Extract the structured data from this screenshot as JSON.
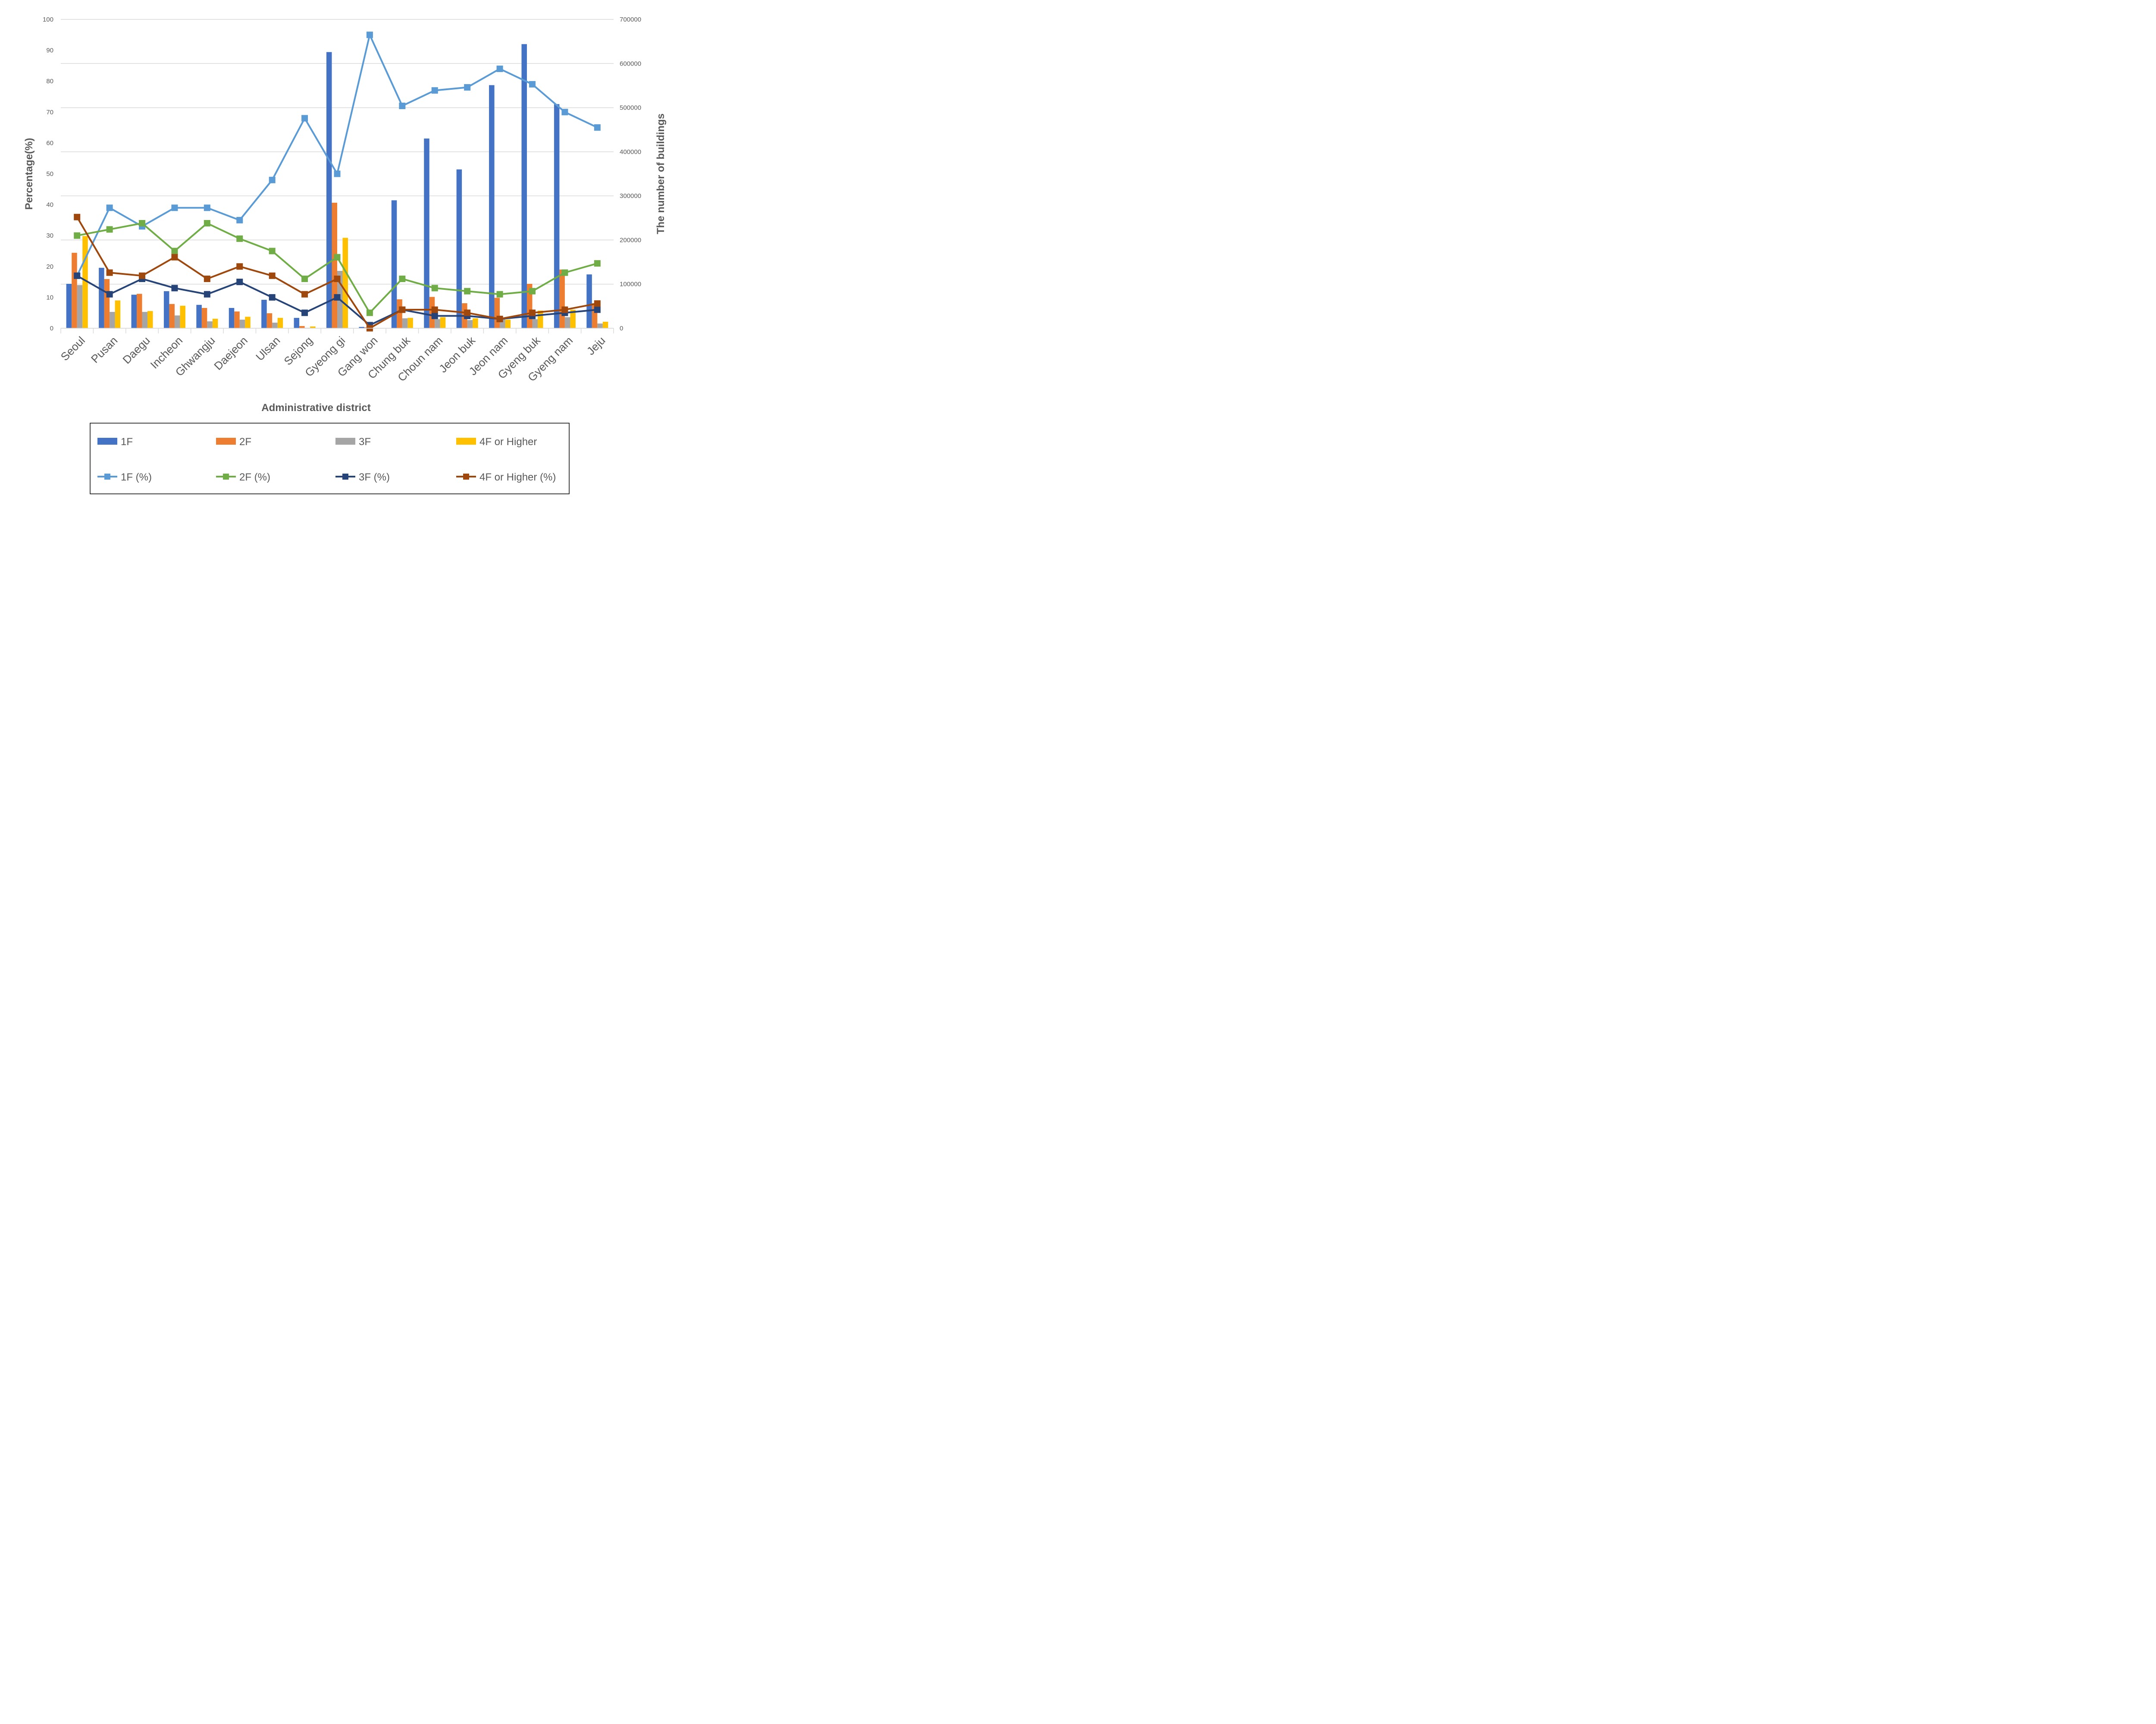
{
  "chart_data": {
    "type": "bar",
    "title": "",
    "xlabel": "Administrative district",
    "ylabel": "Percentage(%)",
    "y2label": "The number of buildings",
    "ylim": [
      0,
      100
    ],
    "y2lim": [
      0,
      700000
    ],
    "yticks": [
      "0",
      "10",
      "20",
      "30",
      "40",
      "50",
      "60",
      "70",
      "80",
      "90",
      "100"
    ],
    "y2ticks": [
      "0",
      "100000",
      "200000",
      "300000",
      "400000",
      "500000",
      "600000",
      "700000"
    ],
    "grid": true,
    "legend_position": "bottom",
    "categories": [
      "Seoul",
      "Pusan",
      "Daegu",
      "Incheon",
      "Ghwangju",
      "Daejeon",
      "Ulsan",
      "Sejong",
      "Gyeong gi",
      "Gang won",
      "Chung buk",
      "Choun nam",
      "Jeon buk",
      "Jeon nam",
      "Gyeng buk",
      "Gyeng nam",
      "Jeju"
    ],
    "bar_series": [
      {
        "name": "1F",
        "color": "#4472C4",
        "axis": "right",
        "values": [
          100700,
          137000,
          76000,
          84000,
          53000,
          46000,
          64500,
          23500,
          626000,
          3000,
          290000,
          430000,
          360000,
          551000,
          644000,
          508000,
          122000
        ]
      },
      {
        "name": "2F",
        "color": "#ED7D31",
        "axis": "right",
        "values": [
          171000,
          111500,
          78000,
          55000,
          46000,
          38000,
          34000,
          5000,
          284500,
          2000,
          65500,
          71000,
          56700,
          69000,
          100700,
          133000,
          56700
        ]
      },
      {
        "name": "3F",
        "color": "#A5A5A5",
        "axis": "right",
        "values": [
          97800,
          37000,
          37000,
          29000,
          15600,
          19500,
          12700,
          1000,
          130000,
          1000,
          22500,
          20500,
          18500,
          20500,
          20500,
          25000,
          10700
        ]
      },
      {
        "name": "4F or Higher",
        "color": "#FFC000",
        "axis": "right",
        "values": [
          209000,
          63000,
          39000,
          51000,
          21500,
          26000,
          23500,
          4000,
          205000,
          500,
          23500,
          25000,
          22500,
          19500,
          40000,
          42000,
          14700
        ]
      }
    ],
    "line_series": [
      {
        "name": "1F (%)",
        "color": "#5B9BD5",
        "axis": "left",
        "values": [
          17,
          39,
          33,
          39,
          39,
          35,
          48,
          68,
          50,
          95,
          72,
          77,
          78,
          84,
          79,
          70,
          65
        ]
      },
      {
        "name": "2F (%)",
        "color": "#70AD47",
        "axis": "left",
        "values": [
          30,
          32,
          34,
          25,
          34,
          29,
          25,
          16,
          23,
          5,
          16,
          13,
          12,
          11,
          12,
          18,
          21
        ]
      },
      {
        "name": "3F (%)",
        "color": "#264478",
        "axis": "left",
        "values": [
          17,
          11,
          16,
          13,
          11,
          15,
          10,
          5,
          10,
          1,
          6,
          4,
          4,
          3,
          4,
          5,
          6
        ]
      },
      {
        "name": "4F or Higher (%)",
        "color": "#9E480E",
        "axis": "left",
        "values": [
          36,
          18,
          17,
          23,
          16,
          20,
          17,
          11,
          16,
          0,
          6,
          6,
          5,
          3,
          5,
          6,
          8
        ]
      }
    ]
  }
}
